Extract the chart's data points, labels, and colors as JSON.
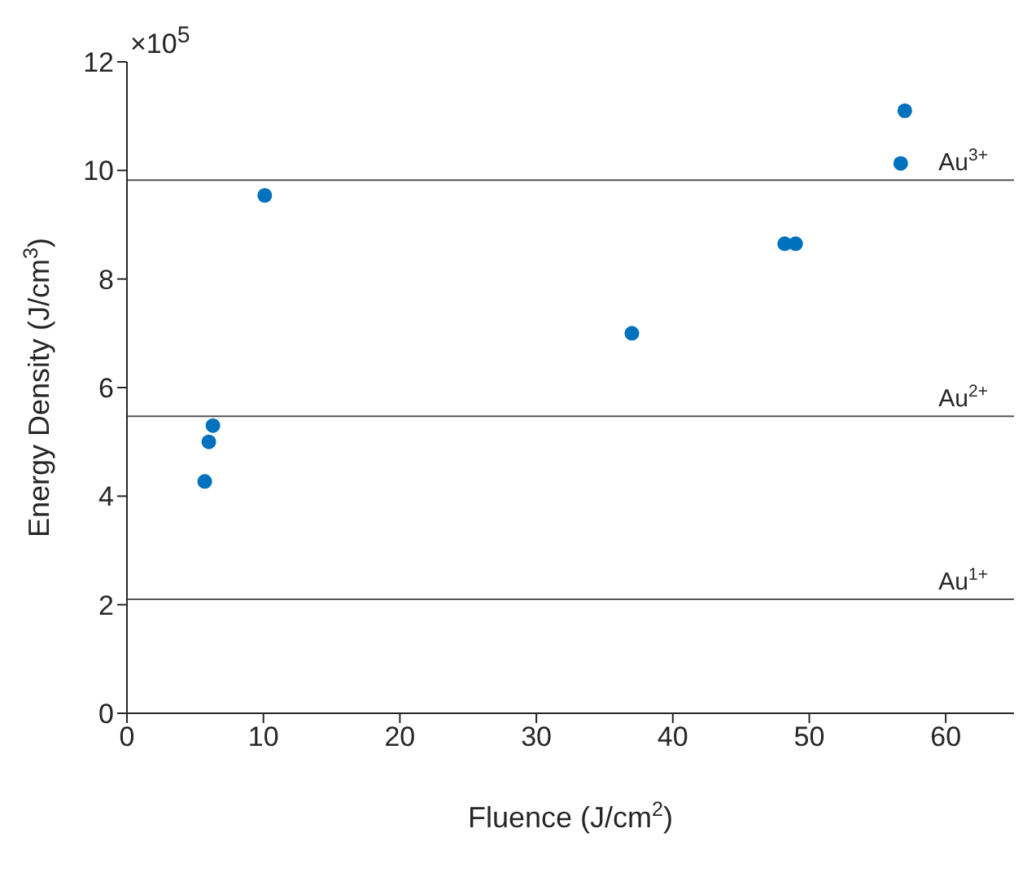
{
  "chart_data": {
    "type": "scatter",
    "xlabel": "Fluence (J/cm$^{2}$)",
    "ylabel": "Energy Density (J/cm$^{3}$)",
    "x": [
      5.7,
      6.0,
      6.3,
      10.1,
      37.0,
      48.2,
      49.0,
      56.7,
      57.0
    ],
    "series": [
      {
        "color": "#0072bd",
        "values": [
          4.27,
          5.0,
          5.3,
          9.54,
          7.0,
          8.65,
          8.65,
          10.13,
          11.1
        ]
      }
    ],
    "xlim": [
      0,
      65
    ],
    "xticks": [
      0,
      10,
      20,
      30,
      40,
      50,
      60
    ],
    "ylim": [
      0,
      12
    ],
    "yticks": [
      0,
      2,
      4,
      6,
      8,
      10,
      12
    ],
    "marker": "circle",
    "grid": false,
    "legend": false,
    "annotations": [
      "×10$^{5}$"
    ],
    "ref_lines": [
      {
        "axis": "y",
        "value": 9.82,
        "label": "Au$^{3+}$",
        "color": "#555555"
      },
      {
        "axis": "y",
        "value": 5.47,
        "label": "Au$^{2+}$",
        "color": "#555555"
      },
      {
        "axis": "y",
        "value": 2.1,
        "label": "Au$^{1+}$",
        "color": "#555555"
      }
    ]
  }
}
